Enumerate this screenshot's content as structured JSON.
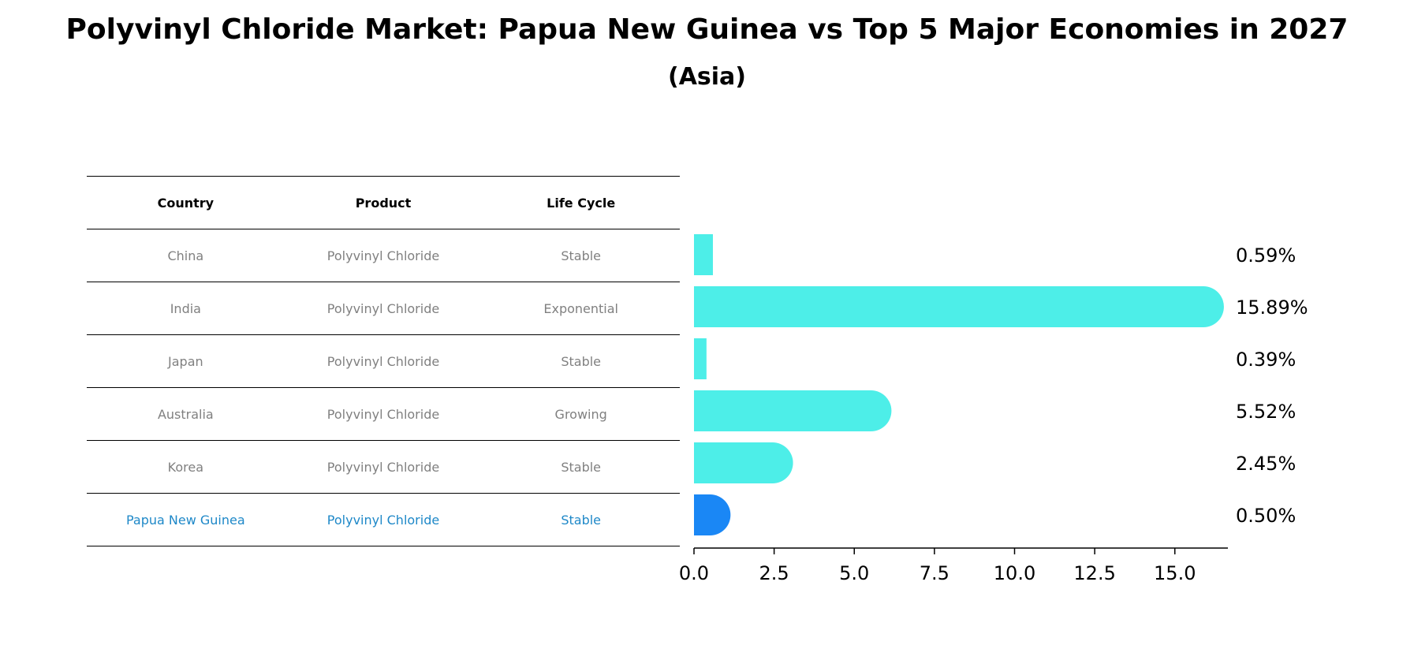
{
  "title": "Polyvinyl Chloride Market: Papua New Guinea vs Top 5 Major Economies in 2027",
  "subtitle": "(Asia)",
  "table": {
    "headers": [
      "Country",
      "Product",
      "Life Cycle"
    ],
    "rows": [
      {
        "country": "China",
        "product": "Polyvinyl Chloride",
        "life_cycle": "Stable"
      },
      {
        "country": "India",
        "product": "Polyvinyl Chloride",
        "life_cycle": "Exponential"
      },
      {
        "country": "Japan",
        "product": "Polyvinyl Chloride",
        "life_cycle": "Stable"
      },
      {
        "country": "Australia",
        "product": "Polyvinyl Chloride",
        "life_cycle": "Growing"
      },
      {
        "country": "Korea",
        "product": "Polyvinyl Chloride",
        "life_cycle": "Stable"
      },
      {
        "country": "Papua New Guinea",
        "product": "Polyvinyl Chloride",
        "life_cycle": "Stable"
      }
    ]
  },
  "colors": {
    "bar": "#4deee8",
    "highlight_bar": "#1a87f5",
    "highlight_text": "#1e88c8",
    "muted_text": "#808080"
  },
  "chart_data": {
    "type": "bar",
    "orientation": "horizontal",
    "categories": [
      "China",
      "India",
      "Japan",
      "Australia",
      "Korea",
      "Papua New Guinea"
    ],
    "values": [
      0.59,
      15.89,
      0.39,
      5.52,
      2.45,
      0.5
    ],
    "value_labels": [
      "0.59%",
      "15.89%",
      "0.39%",
      "5.52%",
      "2.45%",
      "0.50%"
    ],
    "highlight": "Papua New Guinea",
    "xlim": [
      0,
      16.6
    ],
    "xticks": [
      0.0,
      2.5,
      5.0,
      7.5,
      10.0,
      12.5,
      15.0
    ],
    "xtick_labels": [
      "0.0",
      "2.5",
      "5.0",
      "7.5",
      "10.0",
      "12.5",
      "15.0"
    ],
    "xlabel": "",
    "ylabel": "",
    "grid": false
  }
}
